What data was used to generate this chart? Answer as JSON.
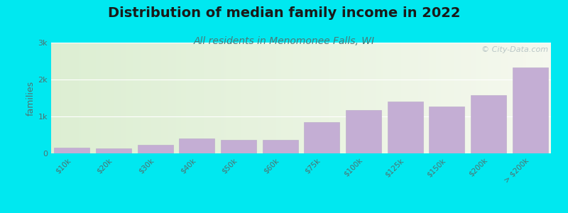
{
  "title": "Distribution of median family income in 2022",
  "subtitle": "All residents in Menomonee Falls, WI",
  "ylabel": "families",
  "categories": [
    "$10k",
    "$20k",
    "$30k",
    "$40k",
    "$50k",
    "$60k",
    "$75k",
    "$100k",
    "$125k",
    "$150k",
    "$200k",
    "> $200k"
  ],
  "values": [
    155,
    140,
    230,
    395,
    360,
    370,
    840,
    1180,
    1400,
    1260,
    1570,
    2330
  ],
  "bar_color": "#c4aed4",
  "bar_edge_color": "#b8a8c8",
  "background_color": "#00e8f0",
  "title_color": "#1a1a1a",
  "subtitle_color": "#4a7a7a",
  "title_fontsize": 14,
  "subtitle_fontsize": 10,
  "ylabel_fontsize": 9,
  "tick_color": "#507070",
  "ytick_labels": [
    "0",
    "1k",
    "2k",
    "3k"
  ],
  "ytick_values": [
    0,
    1000,
    2000,
    3000
  ],
  "ylim": [
    0,
    3000
  ],
  "watermark": "© City-Data.com",
  "watermark_color": "#b0bec0"
}
